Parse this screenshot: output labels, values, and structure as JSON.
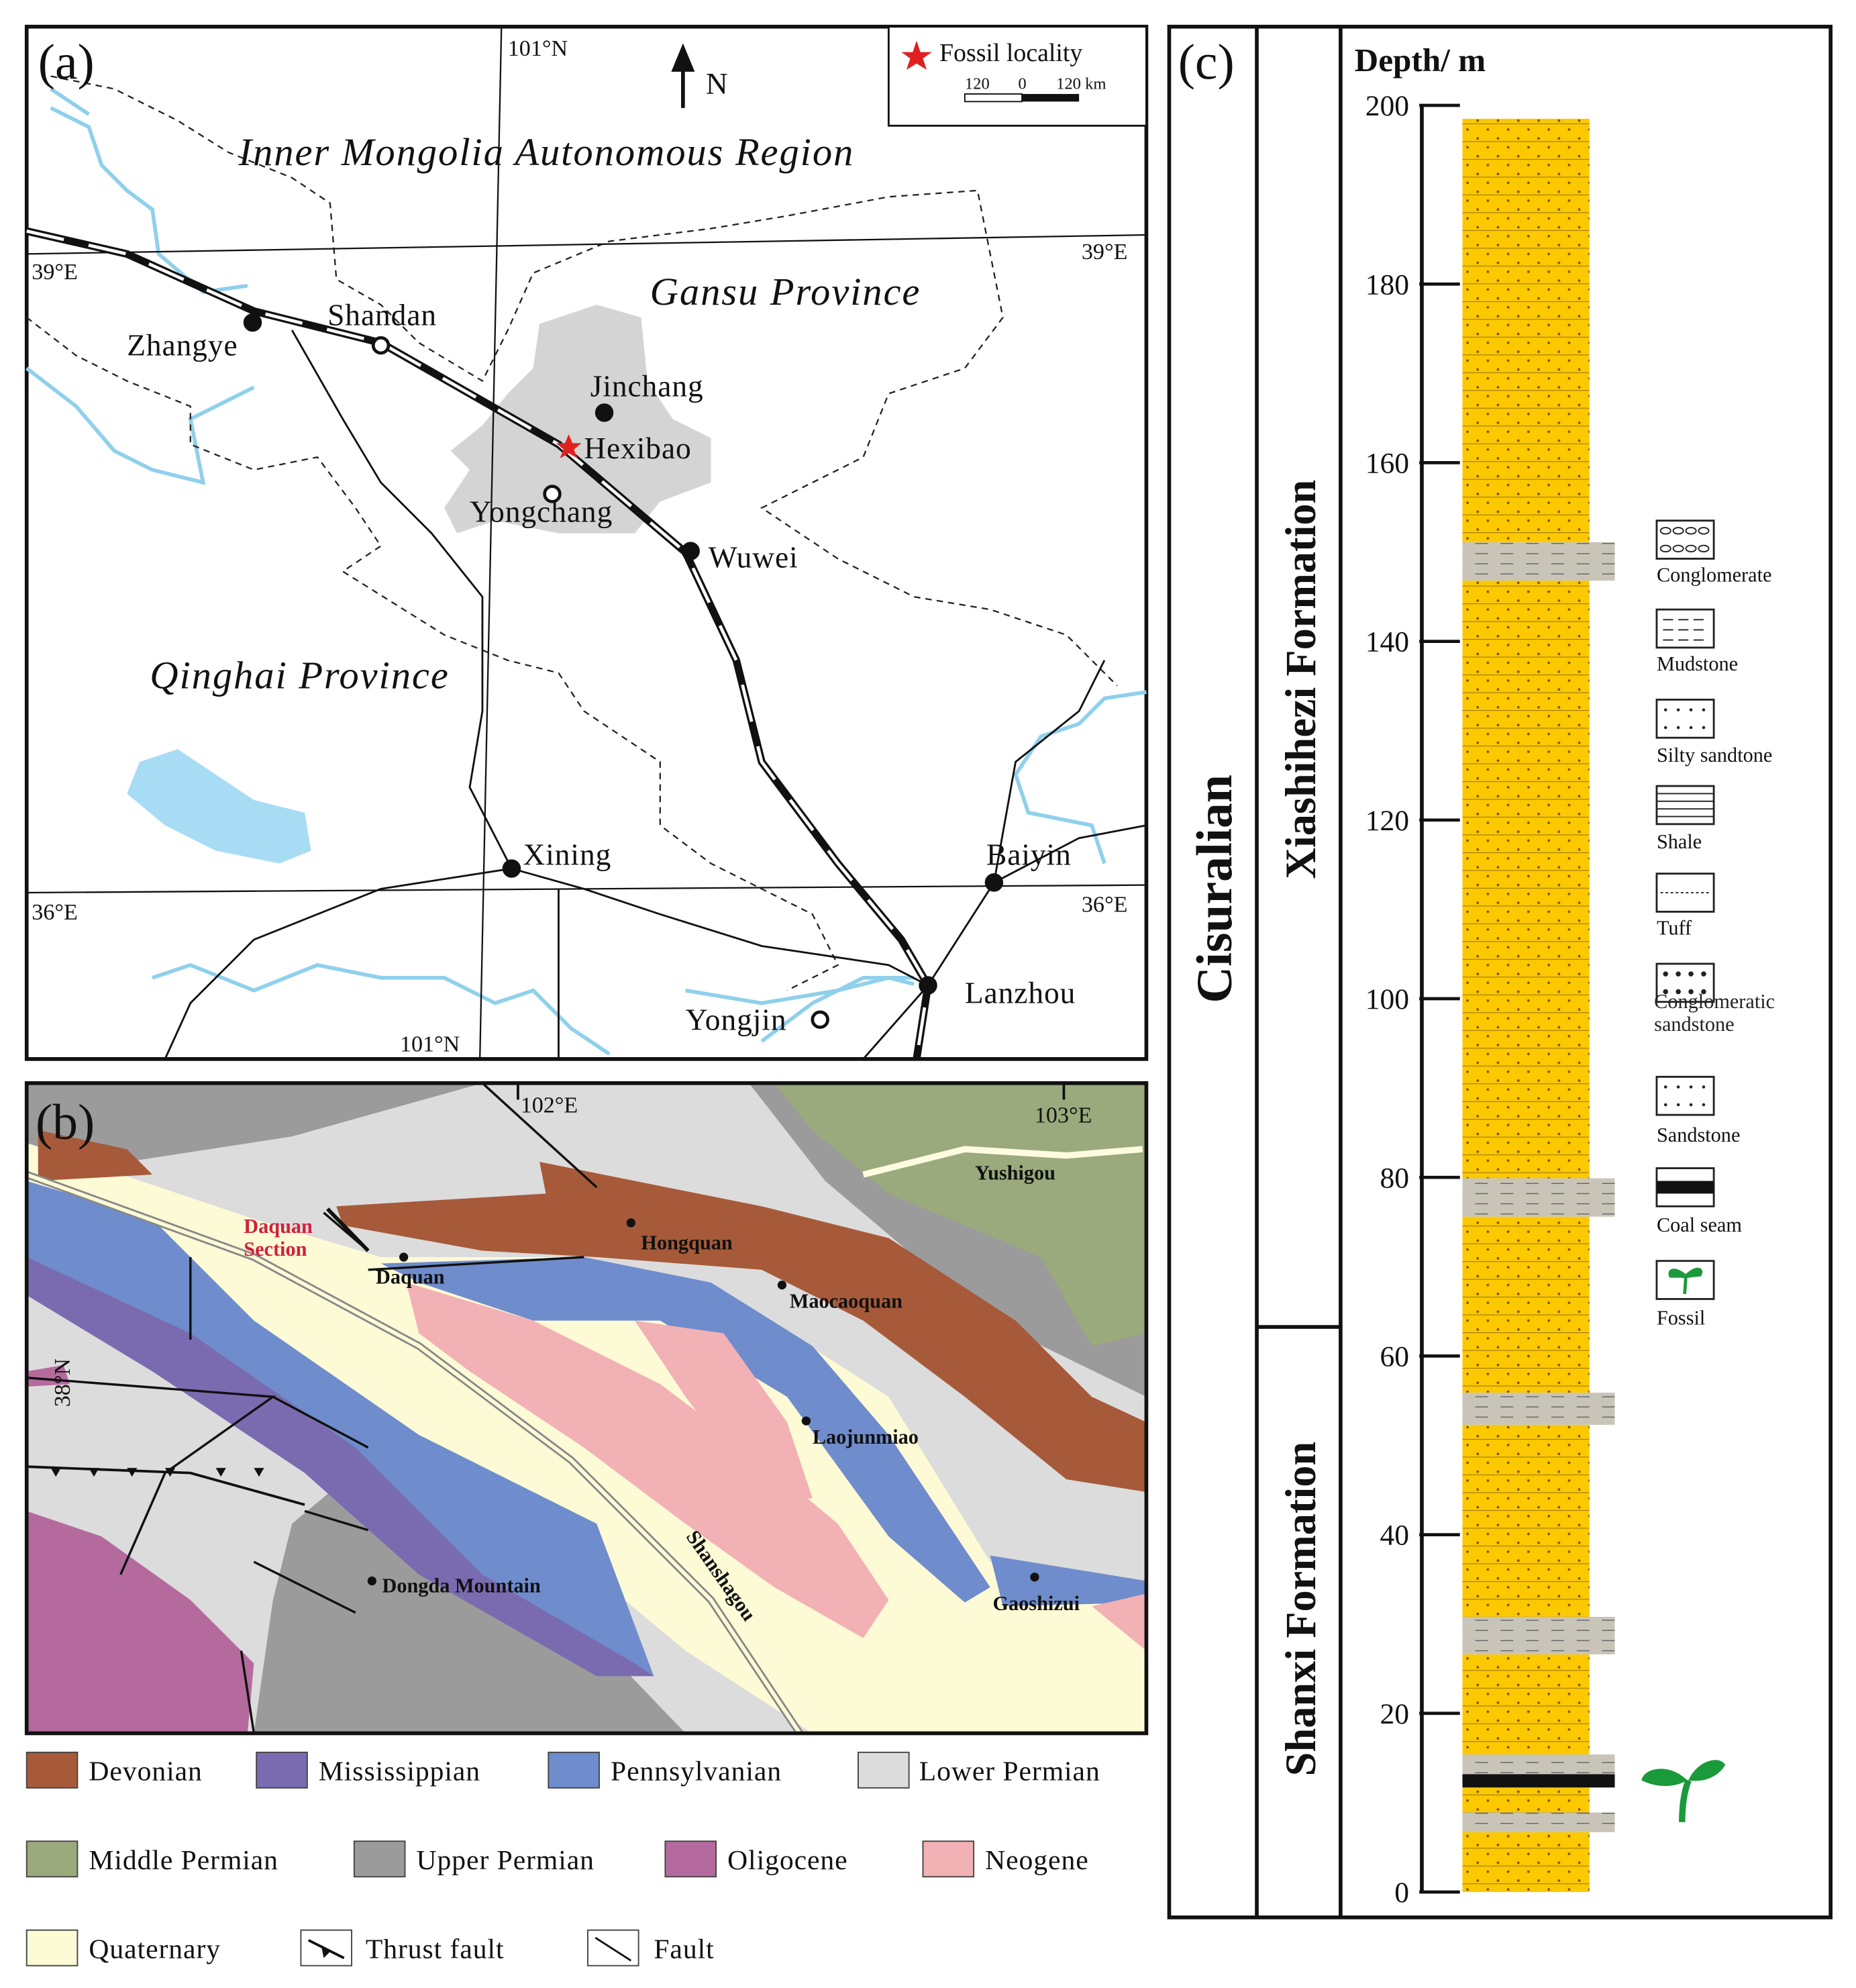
{
  "panel_a": {
    "label": "(a)",
    "north": "N",
    "legend_fossil": "Fossil locality",
    "scale": {
      "left": "120",
      "mid": "0",
      "right": "120 km"
    },
    "grid_labels": [
      "101°N",
      "39°E",
      "39°E",
      "36°E",
      "36°E",
      "101°N"
    ],
    "regions": [
      "Inner Mongolia Autonomous Region",
      "Gansu Province",
      "Qinghai Province"
    ],
    "places": [
      "Zhangye",
      "Shandan",
      "Jinchang",
      "Hexibao",
      "Yongchang",
      "Wuwei",
      "Xining",
      "Baiyin",
      "Lanzhou",
      "Yongjin"
    ]
  },
  "panel_b": {
    "label": "(b)",
    "grid_labels": [
      "102°E",
      "103°E",
      "38°N"
    ],
    "section_label": "Daquan Section",
    "places": [
      "Daquan",
      "Hongquan",
      "Maocaoquan",
      "Yushigou",
      "Laojunmiao",
      "Shanshagou",
      "Dongda Mountain",
      "Gaoshizui"
    ],
    "legend": [
      {
        "name": "Devonian",
        "color": "#a65a3a"
      },
      {
        "name": "Mississippian",
        "color": "#7a6bb0"
      },
      {
        "name": "Pennsylvanian",
        "color": "#6f8ccc"
      },
      {
        "name": "Lower Permian",
        "color": "#dcdcdc"
      },
      {
        "name": "Middle Permian",
        "color": "#9aaa7c"
      },
      {
        "name": "Upper Permian",
        "color": "#9b9b9b"
      },
      {
        "name": "Oligocene",
        "color": "#b56a9d"
      },
      {
        "name": "Neogene",
        "color": "#f2b1b4"
      },
      {
        "name": "Quaternary",
        "color": "#fdfad6"
      },
      {
        "name": "Thrust fault"
      },
      {
        "name": "Fault"
      }
    ]
  },
  "panel_c": {
    "label": "(c)",
    "series": "Cisuralian",
    "formations": [
      "Xiashihezi Formation",
      "Shanxi Formation"
    ],
    "axis_title": "Depth/ m",
    "ylim": [
      0,
      200
    ],
    "yticks": [
      0,
      20,
      40,
      60,
      80,
      100,
      120,
      140,
      160,
      180,
      200
    ],
    "fill": "#fcc800",
    "layers": [
      {
        "from": 0,
        "to": 6.7,
        "color": "#fcc800"
      },
      {
        "from": 6.7,
        "to": 8.9,
        "color": "#c8c5b8"
      },
      {
        "from": 8.9,
        "to": 11.7,
        "color": "#fcc800"
      },
      {
        "from": 11.7,
        "to": 13.2,
        "color": "#111111"
      },
      {
        "from": 13.2,
        "to": 15.4,
        "color": "#c8c5b8"
      },
      {
        "from": 15.4,
        "to": 26.6,
        "color": "#fcc800"
      },
      {
        "from": 26.6,
        "to": 30.8,
        "color": "#c8c5b8"
      },
      {
        "from": 30.8,
        "to": 52.3,
        "color": "#fcc800"
      },
      {
        "from": 52.3,
        "to": 55.9,
        "color": "#c8c5b8"
      },
      {
        "from": 55.9,
        "to": 75.6,
        "color": "#fcc800"
      },
      {
        "from": 75.6,
        "to": 79.9,
        "color": "#c8c5b8"
      },
      {
        "from": 79.9,
        "to": 146.8,
        "color": "#fcc800"
      },
      {
        "from": 146.8,
        "to": 151.1,
        "color": "#c8c5b8"
      },
      {
        "from": 151.1,
        "to": 198.5,
        "color": "#fcc800"
      }
    ],
    "legend": [
      "Conglomerate",
      "Mudstone",
      "Silty sandtone",
      "Shale",
      "Tuff",
      "Conglomeratic sandstone",
      "Sandstone",
      "Coal seam",
      "Fossil"
    ]
  }
}
